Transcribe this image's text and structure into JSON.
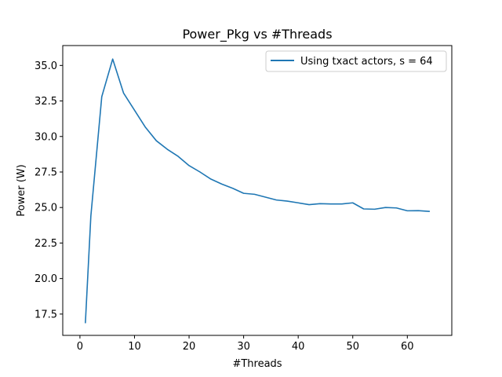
{
  "chart_data": {
    "type": "line",
    "title": "Power_Pkg vs #Threads",
    "xlabel": "#Threads",
    "ylabel": "Power (W)",
    "xlim": [
      -3.15,
      68.15
    ],
    "ylim": [
      16.0,
      36.4
    ],
    "xticks": [
      0,
      10,
      20,
      30,
      40,
      50,
      60
    ],
    "yticks": [
      17.5,
      20.0,
      22.5,
      25.0,
      27.5,
      30.0,
      32.5,
      35.0
    ],
    "grid": false,
    "legend_position": "top-right",
    "series": [
      {
        "name": "Using txact actors, s = 64",
        "color": "#1f77b4",
        "x": [
          1,
          2,
          4,
          6,
          8,
          10,
          12,
          14,
          16,
          18,
          20,
          22,
          24,
          26,
          28,
          30,
          32,
          34,
          36,
          38,
          40,
          42,
          44,
          46,
          48,
          50,
          52,
          54,
          56,
          58,
          60,
          62,
          64
        ],
        "y": [
          16.9,
          24.4,
          32.8,
          35.45,
          33.05,
          31.85,
          30.65,
          29.7,
          29.1,
          28.6,
          27.95,
          27.5,
          27.0,
          26.65,
          26.35,
          26.0,
          25.93,
          25.73,
          25.53,
          25.45,
          25.33,
          25.2,
          25.27,
          25.25,
          25.25,
          25.33,
          24.9,
          24.88,
          25.0,
          24.97,
          24.77,
          24.78,
          24.73
        ]
      }
    ]
  }
}
